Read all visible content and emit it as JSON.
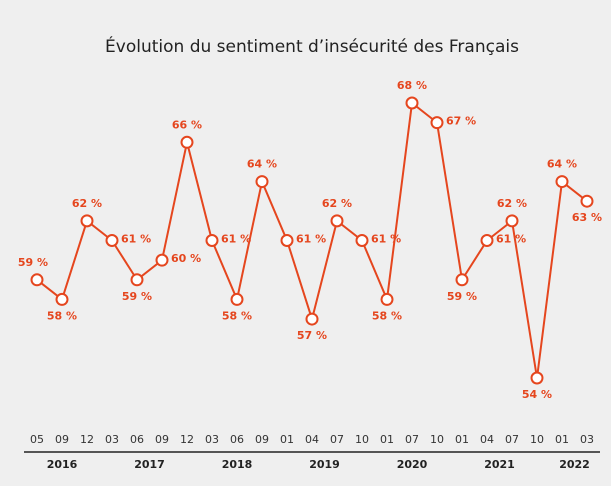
{
  "chart_data": {
    "type": "line",
    "title": "Évolution du sentiment d’insécurité des Français",
    "categories": [
      "05",
      "09",
      "12",
      "03",
      "06",
      "09",
      "12",
      "03",
      "06",
      "09",
      "01",
      "04",
      "07",
      "10",
      "01",
      "07",
      "10",
      "01",
      "04",
      "07",
      "10",
      "01",
      "03"
    ],
    "x_groups": [
      {
        "label": "2016",
        "size": 3
      },
      {
        "label": "2017",
        "size": 4
      },
      {
        "label": "2018",
        "size": 3
      },
      {
        "label": "2019",
        "size": 4
      },
      {
        "label": "2020",
        "size": 3
      },
      {
        "label": "2021",
        "size": 4
      },
      {
        "label": "2022",
        "size": 2
      }
    ],
    "series": [
      {
        "color": "#e5461e",
        "values": [
          59,
          58,
          62,
          61,
          59,
          60,
          66,
          61,
          58,
          64,
          61,
          57,
          62,
          61,
          58,
          68,
          67,
          59,
          61,
          62,
          54,
          64,
          63
        ],
        "value_labels": [
          "59 %",
          "58 %",
          "62 %",
          "61 %",
          "59 %",
          "60 %",
          "66 %",
          "61 %",
          "58 %",
          "64 %",
          "61 %",
          "57 %",
          "62 %",
          "61 %",
          "58 %",
          "68 %",
          "67 %",
          "59 %",
          "61 %",
          "62 %",
          "54 %",
          "64 %",
          "63 %"
        ]
      }
    ]
  }
}
